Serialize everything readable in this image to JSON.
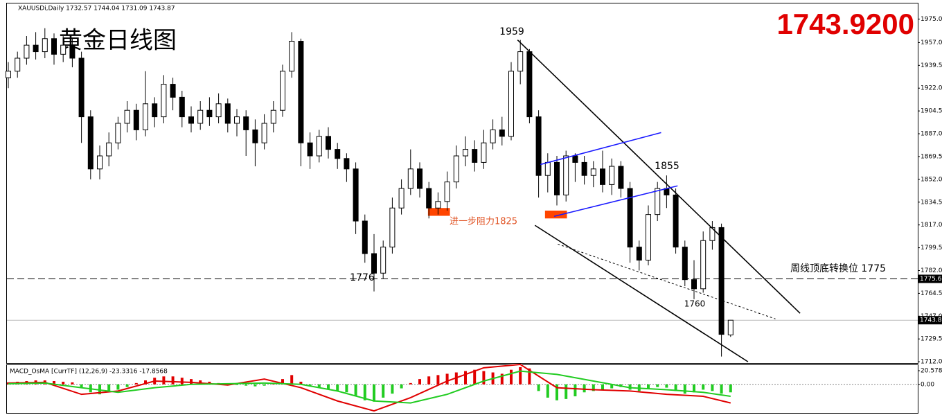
{
  "chart_data": {
    "type": "candlestick",
    "header": "XAUUSDi,Daily  1732.57 1744.04 1731.09 1743.87",
    "title": "黄金日线图",
    "price_display": "1743.9200",
    "open": [
      1930,
      1935,
      1945,
      1955,
      1950,
      1960,
      1948,
      1955,
      1945,
      1900,
      1860,
      1870,
      1880,
      1895,
      1905,
      1890,
      1910,
      1900,
      1925,
      1915,
      1900,
      1895,
      1905,
      1900,
      1910,
      1895,
      1900,
      1890,
      1880,
      1895,
      1905,
      1935,
      1958,
      1880,
      1870,
      1885,
      1875,
      1868,
      1860,
      1820,
      1795,
      1780,
      1800,
      1830,
      1845,
      1860,
      1845,
      1830,
      1835,
      1850,
      1870,
      1875,
      1865,
      1880,
      1890,
      1885,
      1935,
      1950,
      1900,
      1855,
      1865,
      1840,
      1870,
      1865,
      1855,
      1860,
      1848,
      1862,
      1845,
      1800,
      1790,
      1825,
      1845,
      1840,
      1800,
      1775,
      1768,
      1805,
      1815,
      1732.57
    ],
    "high": [
      1942,
      1950,
      1962,
      1965,
      1968,
      1964,
      1962,
      1960,
      1950,
      1905,
      1878,
      1888,
      1900,
      1912,
      1910,
      1935,
      1915,
      1932,
      1930,
      1920,
      1908,
      1912,
      1915,
      1918,
      1914,
      1906,
      1905,
      1898,
      1902,
      1912,
      1940,
      1965,
      1960,
      1888,
      1890,
      1892,
      1880,
      1872,
      1865,
      1825,
      1810,
      1805,
      1838,
      1852,
      1875,
      1865,
      1850,
      1842,
      1858,
      1878,
      1885,
      1882,
      1890,
      1898,
      1900,
      1942,
      1959,
      1952,
      1905,
      1872,
      1870,
      1874,
      1872,
      1870,
      1866,
      1874,
      1868,
      1866,
      1850,
      1805,
      1832,
      1850,
      1855,
      1845,
      1805,
      1790,
      1812,
      1820,
      1818,
      1744.04
    ],
    "low": [
      1922,
      1930,
      1940,
      1944,
      1945,
      1940,
      1942,
      1938,
      1880,
      1852,
      1852,
      1862,
      1875,
      1888,
      1882,
      1885,
      1892,
      1895,
      1905,
      1892,
      1888,
      1890,
      1893,
      1895,
      1888,
      1885,
      1870,
      1862,
      1875,
      1888,
      1900,
      1930,
      1862,
      1860,
      1865,
      1868,
      1860,
      1850,
      1810,
      1788,
      1766,
      1776,
      1795,
      1825,
      1840,
      1838,
      1822,
      1825,
      1828,
      1845,
      1862,
      1858,
      1860,
      1875,
      1878,
      1882,
      1925,
      1895,
      1838,
      1842,
      1832,
      1835,
      1850,
      1848,
      1846,
      1842,
      1840,
      1838,
      1788,
      1782,
      1786,
      1820,
      1830,
      1795,
      1770,
      1760,
      1765,
      1798,
      1716,
      1731.09
    ],
    "close": [
      1935,
      1945,
      1955,
      1950,
      1960,
      1948,
      1955,
      1945,
      1900,
      1860,
      1870,
      1880,
      1895,
      1905,
      1890,
      1910,
      1900,
      1925,
      1915,
      1900,
      1895,
      1905,
      1900,
      1910,
      1895,
      1900,
      1890,
      1880,
      1895,
      1905,
      1935,
      1958,
      1880,
      1870,
      1885,
      1875,
      1868,
      1860,
      1820,
      1795,
      1780,
      1800,
      1830,
      1845,
      1860,
      1845,
      1830,
      1835,
      1850,
      1870,
      1875,
      1865,
      1880,
      1890,
      1885,
      1935,
      1950,
      1900,
      1855,
      1865,
      1840,
      1870,
      1865,
      1855,
      1860,
      1848,
      1862,
      1845,
      1800,
      1790,
      1825,
      1845,
      1840,
      1800,
      1775,
      1768,
      1805,
      1815,
      1733,
      1743.87
    ],
    "ylim": [
      1711,
      1987
    ],
    "yticks": [
      {
        "value": 1975,
        "label": "1975.00"
      },
      {
        "value": 1957,
        "label": "1957.00"
      },
      {
        "value": 1939.5,
        "label": "1939.50"
      },
      {
        "value": 1922,
        "label": "1922.00"
      },
      {
        "value": 1904.5,
        "label": "1904.50"
      },
      {
        "value": 1887,
        "label": "1887.00"
      },
      {
        "value": 1869.5,
        "label": "1869.50"
      },
      {
        "value": 1852,
        "label": "1852.00"
      },
      {
        "value": 1834.5,
        "label": "1834.50"
      },
      {
        "value": 1817,
        "label": "1817.00"
      },
      {
        "value": 1799.5,
        "label": "1799.50"
      },
      {
        "value": 1782,
        "label": "1782.00"
      },
      {
        "value": 1764.5,
        "label": "1764.50"
      },
      {
        "value": 1747,
        "label": "1747.00"
      },
      {
        "value": 1729.5,
        "label": "1729.50"
      },
      {
        "value": 1712,
        "label": "1712.00"
      }
    ],
    "hlines": [
      {
        "value": 1775.63,
        "label": "1775.63",
        "style": "dashed"
      },
      {
        "value": 1743.87,
        "label": "1743.87",
        "style": "solid"
      }
    ],
    "trendlines": [
      {
        "from": [
          55.7,
          1959
        ],
        "to": [
          86.6,
          1749.2
        ],
        "color": "#000000",
        "style": "solid"
      },
      {
        "from": [
          57.6,
          1816.7
        ],
        "to": [
          80.9,
          1712
        ],
        "color": "#000000",
        "style": "solid"
      },
      {
        "from": [
          60.1,
          1802.3
        ],
        "to": [
          83.9,
          1744.9
        ],
        "color": "#000000",
        "style": "dotted"
      },
      {
        "from": [
          58.2,
          1863.4
        ],
        "to": [
          71.4,
          1887.9
        ],
        "color": "#1a1aff",
        "style": "solid"
      },
      {
        "from": [
          59.7,
          1823.6
        ],
        "to": [
          73.2,
          1847
        ],
        "color": "#1a1aff",
        "style": "solid"
      }
    ],
    "zones": [
      {
        "from": [
          45.9,
          1830
        ],
        "to": [
          48.3,
          1824
        ],
        "color": "#ff4500"
      },
      {
        "from": [
          58.7,
          1828
        ],
        "to": [
          61.1,
          1822
        ],
        "color": "#ff4500"
      }
    ],
    "annotations": [
      "1959",
      "1855",
      "1776",
      "1760",
      "进一步阻力1825",
      "周线顶底转换位  1775"
    ],
    "macd": {
      "label": "MACD_OsMA [CurrTF] (12,26,9) -23.3316 -17.8568",
      "ylim": [
        -43,
        29
      ],
      "yticks": [
        {
          "value": 20.5784,
          "label": "20.5784"
        },
        {
          "value": 0,
          "label": "0.00"
        }
      ],
      "histogram": [
        3,
        4,
        5,
        6,
        6,
        5,
        4,
        3,
        -5,
        -12,
        -15,
        -12,
        -8,
        -4,
        2,
        6,
        10,
        12,
        12,
        10,
        8,
        6,
        4,
        2,
        1,
        -1,
        -2,
        -3,
        -2,
        1,
        8,
        14,
        4,
        -2,
        -5,
        -8,
        -10,
        -12,
        -18,
        -24,
        -26,
        -20,
        -14,
        -6,
        2,
        8,
        12,
        14,
        16,
        18,
        20,
        22,
        20,
        18,
        16,
        22,
        26,
        24,
        -10,
        -20,
        -24,
        -22,
        -18,
        -12,
        -10,
        -8,
        -6,
        -4,
        -8,
        -10,
        -6,
        -4,
        -5,
        -10,
        -14,
        -12,
        -8,
        -10,
        -14,
        -12
      ],
      "x": [
        0,
        4,
        8,
        12,
        16,
        20,
        24,
        28,
        32,
        36,
        40,
        44,
        48,
        52,
        56,
        60,
        64,
        68,
        72,
        76,
        79
      ],
      "series": [
        {
          "name": "MACD",
          "color": "#e00000",
          "values": [
            2,
            3,
            -15,
            -10,
            5,
            3,
            -1,
            8,
            -5,
            -25,
            -40,
            -20,
            5,
            25,
            30,
            -5,
            -8,
            -10,
            -15,
            -18,
            -28
          ]
        },
        {
          "name": "Signal",
          "color": "#22cc22",
          "values": [
            1,
            2,
            -5,
            -12,
            -5,
            0,
            1,
            2,
            0,
            -10,
            -25,
            -28,
            -15,
            5,
            20,
            15,
            5,
            -5,
            -8,
            -12,
            -18
          ]
        }
      ]
    }
  }
}
